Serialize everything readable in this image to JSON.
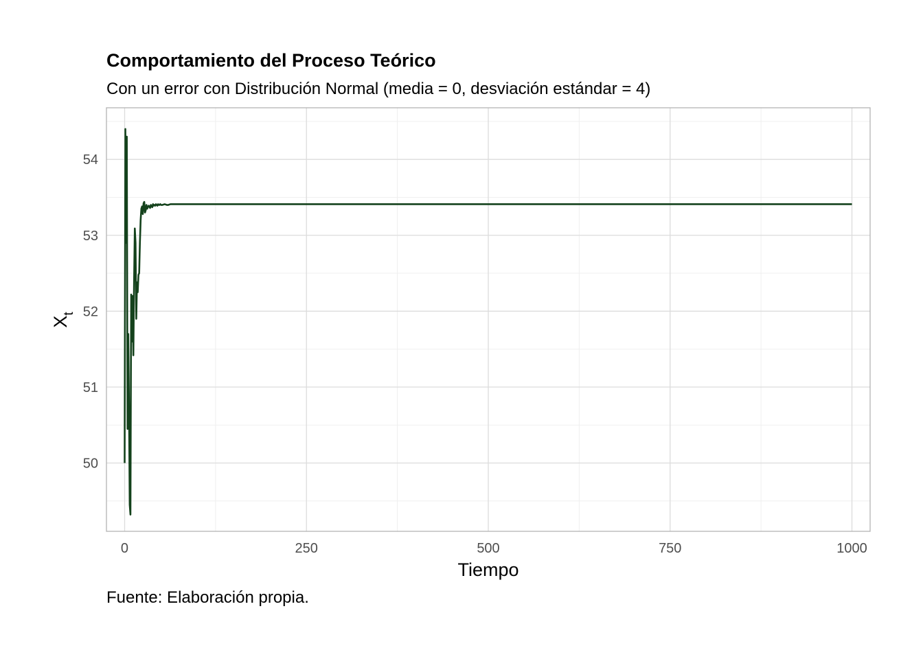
{
  "chart_data": {
    "type": "line",
    "title": "Comportamiento del Proceso Teórico",
    "subtitle": "Con un error con Distribución Normal (media = 0, desviación estándar = 4)",
    "caption": "Fuente: Elaboración propia.",
    "xlabel": "Tiempo",
    "ylabel": "X",
    "ylabel_subscript": "t",
    "xlim": [
      -25,
      1025
    ],
    "ylim": [
      49.1,
      54.68
    ],
    "xticks": [
      0,
      250,
      500,
      750,
      1000
    ],
    "xtick_labels": [
      "0",
      "250",
      "500",
      "750",
      "1000"
    ],
    "yticks": [
      50,
      51,
      52,
      53,
      54
    ],
    "ytick_labels": [
      "50",
      "51",
      "52",
      "53",
      "54"
    ],
    "grid": true,
    "legend": "none",
    "line_color": "#14421c",
    "series": [
      {
        "x": [
          0,
          1,
          2,
          3,
          4,
          5,
          6,
          7,
          8,
          9,
          10,
          11,
          12,
          13,
          14,
          15,
          16,
          17,
          18,
          19,
          20,
          21,
          22,
          23,
          24,
          25,
          26,
          27,
          28,
          29,
          30,
          31,
          32,
          33,
          34,
          35,
          36,
          37,
          38,
          39,
          40,
          41,
          42,
          43,
          44,
          45,
          46,
          47,
          48,
          49,
          50,
          52,
          55,
          58,
          60,
          63,
          66,
          70,
          75,
          80,
          90,
          100,
          150,
          200,
          300,
          400,
          500,
          600,
          700,
          800,
          900,
          1000
        ],
        "y": [
          50.0,
          54.4,
          52.9,
          54.3,
          50.45,
          51.7,
          50.8,
          49.45,
          49.32,
          52.22,
          51.6,
          52.2,
          51.42,
          52.4,
          53.09,
          52.9,
          51.9,
          52.38,
          52.25,
          52.48,
          52.5,
          52.9,
          53.2,
          53.35,
          53.38,
          53.28,
          53.42,
          53.44,
          53.3,
          53.33,
          53.4,
          53.35,
          53.37,
          53.39,
          53.38,
          53.36,
          53.4,
          53.38,
          53.37,
          53.41,
          53.39,
          53.4,
          53.39,
          53.41,
          53.4,
          53.39,
          53.41,
          53.4,
          53.4,
          53.41,
          53.4,
          53.4,
          53.41,
          53.4,
          53.4,
          53.41,
          53.41,
          53.41,
          53.41,
          53.41,
          53.41,
          53.41,
          53.41,
          53.41,
          53.41,
          53.41,
          53.41,
          53.41,
          53.41,
          53.41,
          53.41,
          53.41
        ]
      }
    ]
  }
}
